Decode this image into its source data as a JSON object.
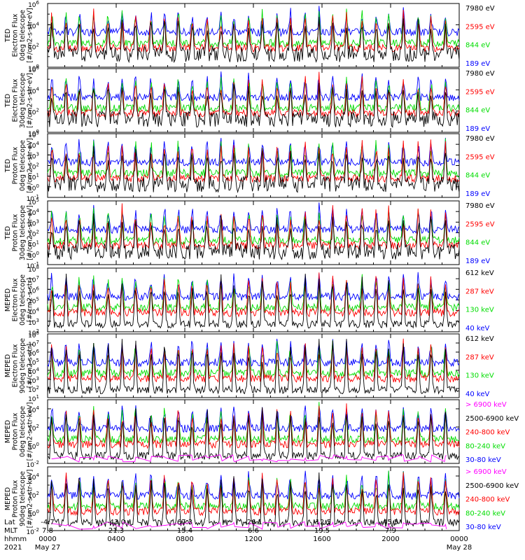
{
  "chart_data": [
    {
      "type": "line",
      "ylabel": [
        "TED",
        "Electron Flux",
        "0deg telescope",
        "[#/cm2-s-str-eV]"
      ],
      "ylim": [
        1,
        1000000
      ],
      "yscale": "log",
      "y_ticks": [
        {
          "label": "10",
          "sup": "6"
        },
        {
          "label": "10",
          "sup": "4"
        },
        {
          "label": "10",
          "sup": "2"
        },
        {
          "label": "10",
          "sup": "0"
        }
      ],
      "series": [
        {
          "name": "7980 eV",
          "color": "#000000"
        },
        {
          "name": "2595 eV",
          "color": "#ff0000"
        },
        {
          "name": "844 eV",
          "color": "#00dd00"
        },
        {
          "name": "189 eV",
          "color": "#0000ff"
        }
      ]
    },
    {
      "type": "line",
      "ylabel": [
        "TED",
        "Electron Flux",
        "30deg telescope",
        "[#/cm2-s-str-eV]"
      ],
      "ylim": [
        1,
        1000000
      ],
      "yscale": "log",
      "y_ticks": [
        {
          "label": "10",
          "sup": "6"
        },
        {
          "label": "10",
          "sup": "4"
        },
        {
          "label": "10",
          "sup": "2"
        },
        {
          "label": "10",
          "sup": "0"
        }
      ],
      "series": [
        {
          "name": "7980 eV",
          "color": "#000000"
        },
        {
          "name": "2595 eV",
          "color": "#ff0000"
        },
        {
          "name": "844 eV",
          "color": "#00dd00"
        },
        {
          "name": "189 eV",
          "color": "#0000ff"
        }
      ]
    },
    {
      "type": "line",
      "ylabel": [
        "TED",
        "Proton Flux",
        "0deg telescope",
        "[#/cm2-s-str-eV]"
      ],
      "ylim": [
        0.1,
        100000
      ],
      "yscale": "log",
      "y_ticks": [
        {
          "label": "10",
          "sup": "5"
        },
        {
          "label": "10",
          "sup": "4"
        },
        {
          "label": "10",
          "sup": "3"
        },
        {
          "label": "10",
          "sup": "2"
        },
        {
          "label": "10",
          "sup": "1"
        },
        {
          "label": "10",
          "sup": "0"
        },
        {
          "label": "10",
          "sup": "-1"
        }
      ],
      "series": [
        {
          "name": "7980 eV",
          "color": "#000000"
        },
        {
          "name": "2595 eV",
          "color": "#ff0000"
        },
        {
          "name": "844 eV",
          "color": "#00dd00"
        },
        {
          "name": "189 eV",
          "color": "#0000ff"
        }
      ]
    },
    {
      "type": "line",
      "ylabel": [
        "TED",
        "Proton Flux",
        "30deg telescope",
        "[#/cm2-s-str-eV]"
      ],
      "ylim": [
        0.1,
        100000
      ],
      "yscale": "log",
      "y_ticks": [
        {
          "label": "10",
          "sup": "5"
        },
        {
          "label": "10",
          "sup": "4"
        },
        {
          "label": "10",
          "sup": "3"
        },
        {
          "label": "10",
          "sup": "2"
        },
        {
          "label": "10",
          "sup": "1"
        },
        {
          "label": "10",
          "sup": "0"
        },
        {
          "label": "10",
          "sup": "-1"
        }
      ],
      "series": [
        {
          "name": "7980 eV",
          "color": "#000000"
        },
        {
          "name": "2595 eV",
          "color": "#ff0000"
        },
        {
          "name": "844 eV",
          "color": "#00dd00"
        },
        {
          "name": "189 eV",
          "color": "#0000ff"
        }
      ]
    },
    {
      "type": "line",
      "ylabel": [
        "MEPED",
        "Electron Flux",
        "0deg telescope",
        "[#/cm2-s-str]"
      ],
      "ylim": [
        100,
        100000000
      ],
      "yscale": "log",
      "y_ticks": [
        {
          "label": "10",
          "sup": "8"
        },
        {
          "label": "10",
          "sup": "7"
        },
        {
          "label": "10",
          "sup": "6"
        },
        {
          "label": "10",
          "sup": "5"
        },
        {
          "label": "10",
          "sup": "4"
        },
        {
          "label": "10",
          "sup": "3"
        },
        {
          "label": "10",
          "sup": "2"
        }
      ],
      "series": [
        {
          "name": "612 keV",
          "color": "#000000"
        },
        {
          "name": "287 keV",
          "color": "#ff0000"
        },
        {
          "name": "130 keV",
          "color": "#00dd00"
        },
        {
          "name": "40 keV",
          "color": "#0000ff"
        }
      ]
    },
    {
      "type": "line",
      "ylabel": [
        "MEPED",
        "Electron Flux",
        "90deg telescope",
        "[#/cm2-s-str]"
      ],
      "ylim": [
        10,
        100000000
      ],
      "yscale": "log",
      "y_ticks": [
        {
          "label": "10",
          "sup": "8"
        },
        {
          "label": "10",
          "sup": "7"
        },
        {
          "label": "10",
          "sup": "6"
        },
        {
          "label": "10",
          "sup": "5"
        },
        {
          "label": "10",
          "sup": "4"
        },
        {
          "label": "10",
          "sup": "3"
        },
        {
          "label": "10",
          "sup": "2"
        },
        {
          "label": "10",
          "sup": "1"
        }
      ],
      "series": [
        {
          "name": "612 keV",
          "color": "#000000"
        },
        {
          "name": "287 keV",
          "color": "#ff0000"
        },
        {
          "name": "130 keV",
          "color": "#00dd00"
        },
        {
          "name": "40 keV",
          "color": "#0000ff"
        }
      ]
    },
    {
      "type": "line",
      "ylabel": [
        "MEPED",
        "Proton Flux",
        "0deg telescope",
        "[#/cm2-s-str-keV]"
      ],
      "ylim": [
        0.01,
        100000
      ],
      "yscale": "log",
      "y_ticks": [
        {
          "label": "10",
          "sup": "4"
        },
        {
          "label": "10",
          "sup": "2"
        },
        {
          "label": "10",
          "sup": "0"
        },
        {
          "label": "10",
          "sup": "-2"
        }
      ],
      "series": [
        {
          "name": "> 6900 keV",
          "color": "#ff00ff"
        },
        {
          "name": "2500-6900 keV",
          "color": "#000000"
        },
        {
          "name": "240-800 keV",
          "color": "#ff0000"
        },
        {
          "name": "80-240 keV",
          "color": "#00dd00"
        },
        {
          "name": "30-80 keV",
          "color": "#0000ff"
        }
      ]
    },
    {
      "type": "line",
      "ylabel": [
        "MEPED",
        "Proton Flux",
        "90deg telescope",
        "[#/cm2-s-str-keV]"
      ],
      "ylim": [
        0.01,
        100000
      ],
      "yscale": "log",
      "y_ticks": [
        {
          "label": "10",
          "sup": "4"
        },
        {
          "label": "10",
          "sup": "2"
        },
        {
          "label": "10",
          "sup": "0"
        },
        {
          "label": "10",
          "sup": "-2"
        }
      ],
      "series": [
        {
          "name": "> 6900 keV",
          "color": "#ff00ff"
        },
        {
          "name": "2500-6900 keV",
          "color": "#000000"
        },
        {
          "name": "240-800 keV",
          "color": "#ff0000"
        },
        {
          "name": "80-240 keV",
          "color": "#00dd00"
        },
        {
          "name": "30-80 keV",
          "color": "#0000ff"
        }
      ]
    }
  ],
  "x_axis": {
    "row_labels": [
      "Lat",
      "MLT",
      "hhmm",
      "2021"
    ],
    "ticks": [
      {
        "hours": 0,
        "lat": "-4.7",
        "mlt": "7.8",
        "hhmm": "0000",
        "date": "May 27"
      },
      {
        "hours": 4,
        "lat": "-43.0",
        "mlt": "21.3",
        "hhmm": "0400",
        "date": ""
      },
      {
        "hours": 8,
        "lat": "67.3",
        "mlt": "15.4",
        "hhmm": "0800",
        "date": ""
      },
      {
        "hours": 12,
        "lat": "-26.1",
        "mlt": "6.6",
        "hhmm": "1200",
        "date": ""
      },
      {
        "hours": 16,
        "lat": "-12.5",
        "mlt": "19.5",
        "hhmm": "1600",
        "date": ""
      },
      {
        "hours": 20,
        "lat": "45.5",
        "mlt": "7.9",
        "hhmm": "2000",
        "date": ""
      },
      {
        "hours": 24,
        "lat": "",
        "mlt": "",
        "hhmm": "0000",
        "date": "May 28"
      }
    ],
    "range_hours": [
      0,
      24
    ]
  }
}
